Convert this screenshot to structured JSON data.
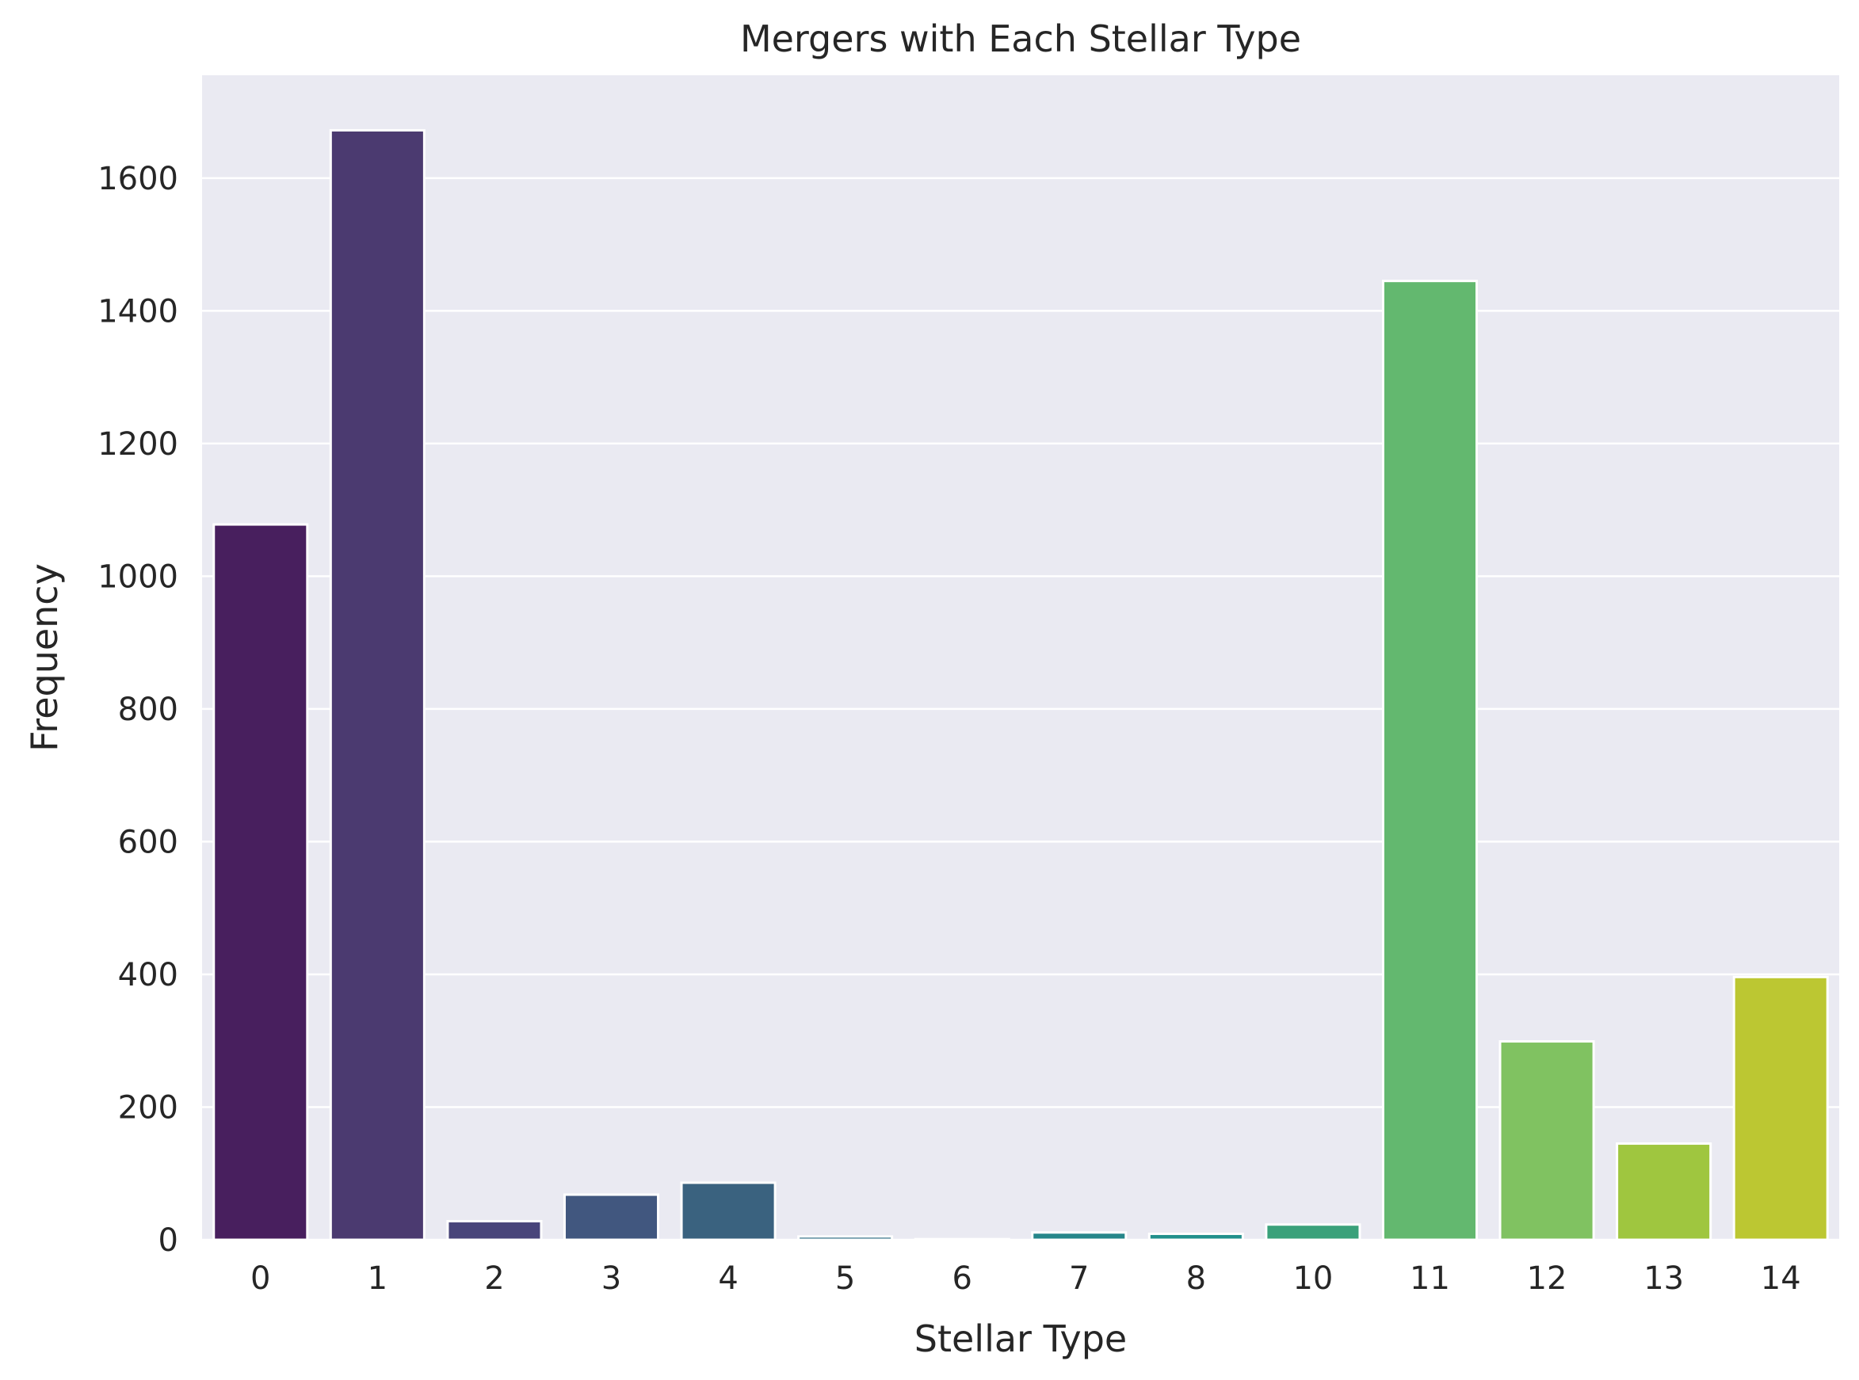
{
  "chart_data": {
    "type": "bar",
    "title": "Mergers with Each Stellar Type",
    "xlabel": "Stellar Type",
    "ylabel": "Frequency",
    "categories": [
      "0",
      "1",
      "2",
      "3",
      "4",
      "5",
      "6",
      "7",
      "8",
      "10",
      "11",
      "12",
      "13",
      "14"
    ],
    "values": [
      1078,
      1672,
      28,
      68,
      86,
      5,
      1,
      11,
      9,
      23,
      1445,
      299,
      145,
      396
    ],
    "ylim": [
      0,
      1755
    ],
    "yticks": [
      0,
      200,
      400,
      600,
      800,
      1000,
      1200,
      1400,
      1600
    ],
    "grid": true,
    "legend": "none",
    "colors": [
      "#481f5e",
      "#4b3a70",
      "#49457a",
      "#41577f",
      "#3a627f",
      "#2f6e85",
      "#2a7a8a",
      "#26868a",
      "#21908c",
      "#3aa17a",
      "#63b86f",
      "#80c261",
      "#9fc63f",
      "#bcc732"
    ],
    "background": "#eaeaf2",
    "gridColor": "#ffffff"
  }
}
